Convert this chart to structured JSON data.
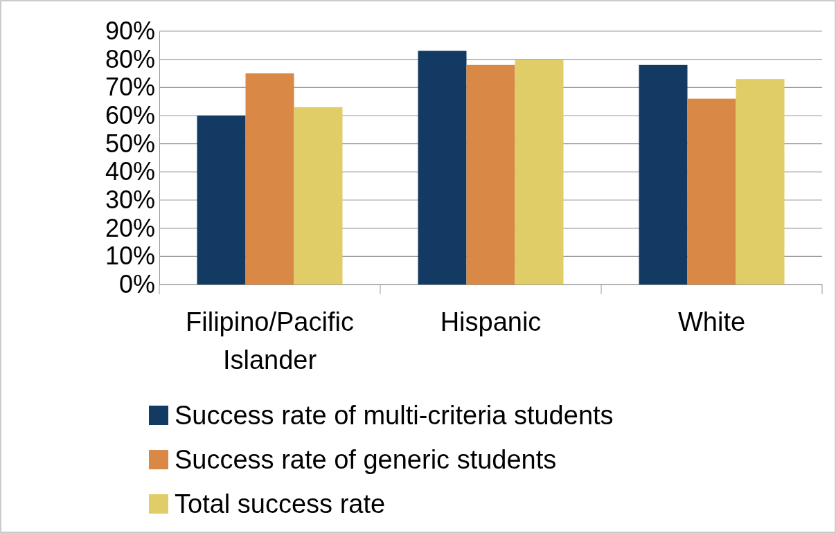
{
  "chart_data": {
    "type": "bar",
    "categories": [
      "Filipino/Pacific Islander",
      "Hispanic",
      "White"
    ],
    "series": [
      {
        "name": "Success rate of multi-criteria students",
        "color": "#133a63",
        "values": [
          60,
          83,
          78
        ]
      },
      {
        "name": "Success rate of generic students",
        "color": "#d98845",
        "values": [
          75,
          78,
          66
        ]
      },
      {
        "name": "Total success rate",
        "color": "#e0cd67",
        "values": [
          63,
          80,
          73
        ]
      }
    ],
    "ylim": [
      0,
      90
    ],
    "yticks": [
      {
        "value": 0,
        "label": "0%"
      },
      {
        "value": 10,
        "label": "10%"
      },
      {
        "value": 20,
        "label": "20%"
      },
      {
        "value": 30,
        "label": "30%"
      },
      {
        "value": 40,
        "label": "40%"
      },
      {
        "value": 50,
        "label": "50%"
      },
      {
        "value": 60,
        "label": "60%"
      },
      {
        "value": 70,
        "label": "70%"
      },
      {
        "value": 80,
        "label": "80%"
      },
      {
        "value": 90,
        "label": "90%"
      }
    ],
    "grid": "y",
    "legend": "bottom"
  }
}
